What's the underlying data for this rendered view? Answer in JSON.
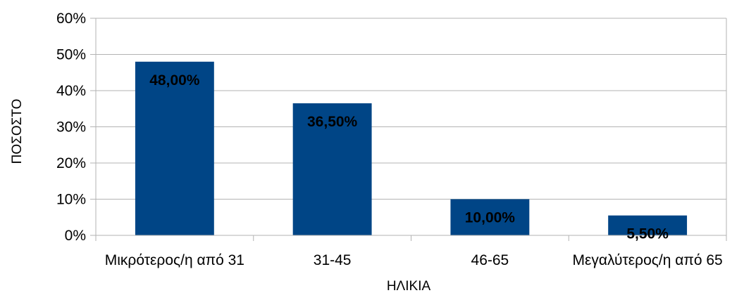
{
  "chart_data": {
    "type": "bar",
    "categories": [
      "Μικρότερος/η από 31",
      "31-45",
      "46-65",
      "Μεγαλύτερος/η από 65"
    ],
    "values": [
      48.0,
      36.5,
      10.0,
      5.5
    ],
    "data_labels": [
      "48,00%",
      "36,50%",
      "10,00%",
      "5,50%"
    ],
    "xlabel": "ΗΛΙΚΙΑ",
    "ylabel": "ΠΟΣΟΣΤΟ",
    "ylim": [
      0,
      60
    ],
    "yticks": [
      0,
      10,
      20,
      30,
      40,
      50,
      60
    ],
    "ytick_labels": [
      "0%",
      "10%",
      "20%",
      "30%",
      "40%",
      "50%",
      "60%"
    ],
    "grid": true,
    "legend": "none",
    "colors": {
      "bar": "#004586",
      "grid": "#b3b3b3",
      "axis": "#b3b3b3"
    }
  }
}
